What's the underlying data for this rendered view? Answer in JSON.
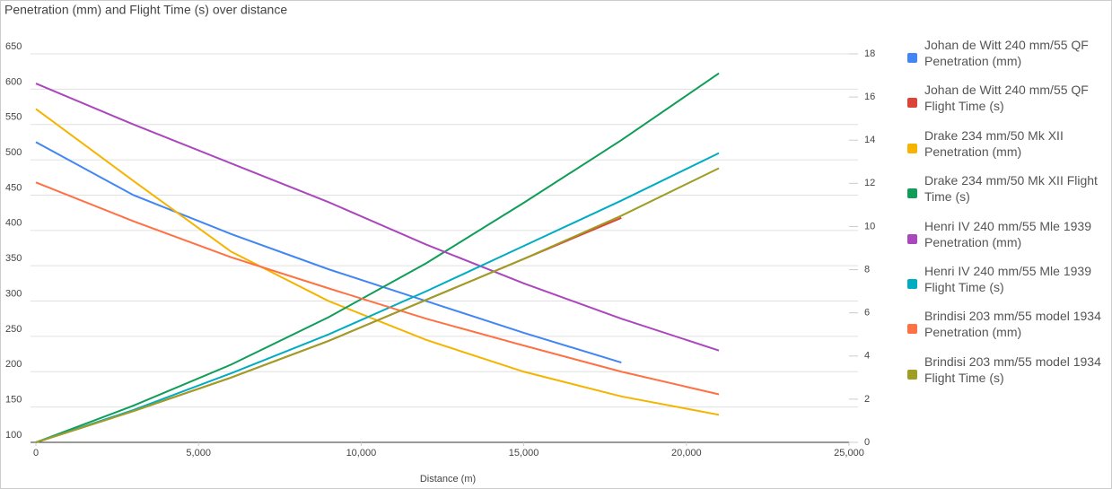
{
  "chart_data": {
    "type": "line",
    "title": "Penetration (mm) and Flight Time (s) over distance",
    "x_label": "Distance (m)",
    "x": [
      0,
      3000,
      6000,
      9000,
      12000,
      15000,
      18000,
      21000
    ],
    "xlim": [
      0,
      25000
    ],
    "xticks": [
      0,
      {
        "value": 5000,
        "label": "5,000"
      },
      {
        "value": 10000,
        "label": "10,000"
      },
      {
        "value": 15000,
        "label": "15,000"
      },
      {
        "value": 20000,
        "label": "20,000"
      },
      {
        "value": 25000,
        "label": "25,000"
      }
    ],
    "ylim": [
      100,
      650
    ],
    "yticks": [
      100,
      150,
      200,
      250,
      300,
      350,
      400,
      450,
      500,
      550,
      600,
      650
    ],
    "y2lim": [
      0,
      18
    ],
    "y2ticks": [
      0,
      2,
      4,
      6,
      8,
      10,
      12,
      14,
      16,
      18
    ],
    "grid": true,
    "legend": "right",
    "series": [
      {
        "name": "Johan de Witt 240 mm/55 QF Penetration (mm)",
        "color": "#4285f4",
        "values": [
          525,
          450,
          395,
          345,
          300,
          255,
          213,
          null
        ]
      },
      {
        "name": "Johan de Witt 240 mm/55 QF Flight Time (s)",
        "color": "#db4437",
        "axis": "y2",
        "values": [
          0,
          1.45,
          3.0,
          4.7,
          6.6,
          8.5,
          10.4,
          null
        ]
      },
      {
        "name": "Drake 234 mm/50 Mk XII Penetration (mm)",
        "color": "#f4b400",
        "values": [
          572,
          470,
          370,
          300,
          245,
          200,
          165,
          139
        ]
      },
      {
        "name": "Drake 234 mm/50 Mk XII Flight Time (s)",
        "color": "#0f9d58",
        "axis": "y2",
        "values": [
          0,
          1.7,
          3.6,
          5.8,
          8.3,
          11.1,
          14.0,
          17.1
        ]
      },
      {
        "name": "Henri IV 240 mm/55 Mle 1939 Penetration (mm)",
        "color": "#ab47bc",
        "values": [
          608,
          550,
          495,
          440,
          380,
          325,
          275,
          230
        ]
      },
      {
        "name": "Henri IV 240 mm/55 Mle 1939 Flight Time (s)",
        "color": "#00acc1",
        "axis": "y2",
        "values": [
          0,
          1.5,
          3.2,
          5.0,
          7.0,
          9.1,
          11.2,
          13.4
        ]
      },
      {
        "name": "Brindisi 203 mm/55 model 1934 Penetration (mm)",
        "color": "#ff7043",
        "values": [
          468,
          413,
          362,
          318,
          275,
          237,
          200,
          168
        ]
      },
      {
        "name": "Brindisi 203 mm/55 model 1934 Flight Time (s)",
        "color": "#9e9d24",
        "axis": "y2",
        "values": [
          0,
          1.45,
          3.0,
          4.7,
          6.6,
          8.5,
          10.5,
          12.7
        ]
      }
    ]
  }
}
